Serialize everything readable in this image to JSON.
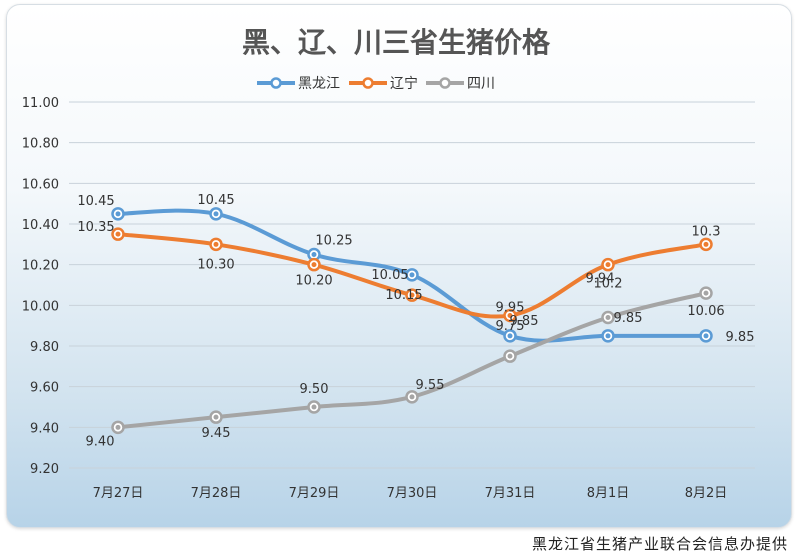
{
  "chart_data": {
    "type": "line",
    "title": "黑、辽、川三省生猪价格",
    "categories": [
      "7月27日",
      "7月28日",
      "7月29日",
      "7月30日",
      "7月31日",
      "8月1日",
      "8月2日"
    ],
    "ylim": [
      9.2,
      11.0
    ],
    "yticks": [
      "11.00",
      "10.80",
      "10.60",
      "10.40",
      "10.20",
      "10.00",
      "9.80",
      "9.60",
      "9.40",
      "9.20"
    ],
    "grid": true,
    "legend_position": "top-center",
    "series": [
      {
        "name": "黑龙江",
        "color": "#5b9bd5",
        "values": [
          10.45,
          10.45,
          10.25,
          10.15,
          9.85,
          9.85,
          9.85
        ],
        "labels": [
          "10.45",
          "10.45",
          "10.25",
          "10.15",
          "9.85",
          "9.85",
          "9.85"
        ]
      },
      {
        "name": "辽宁",
        "color": "#ed7d31",
        "values": [
          10.35,
          10.3,
          10.2,
          10.05,
          9.95,
          10.2,
          10.3
        ],
        "labels": [
          "10.35",
          "10.30",
          "10.20",
          "10.05",
          "9.95",
          "10.2",
          "10.3"
        ]
      },
      {
        "name": "四川",
        "color": "#a5a5a5",
        "values": [
          9.4,
          9.45,
          9.5,
          9.55,
          9.75,
          9.94,
          10.06
        ],
        "labels": [
          "9.40",
          "9.45",
          "9.50",
          "9.55",
          "9.75",
          "9.94",
          "10.06"
        ]
      }
    ]
  },
  "footer": "黑龙江省生猪产业联合会信息办提供"
}
